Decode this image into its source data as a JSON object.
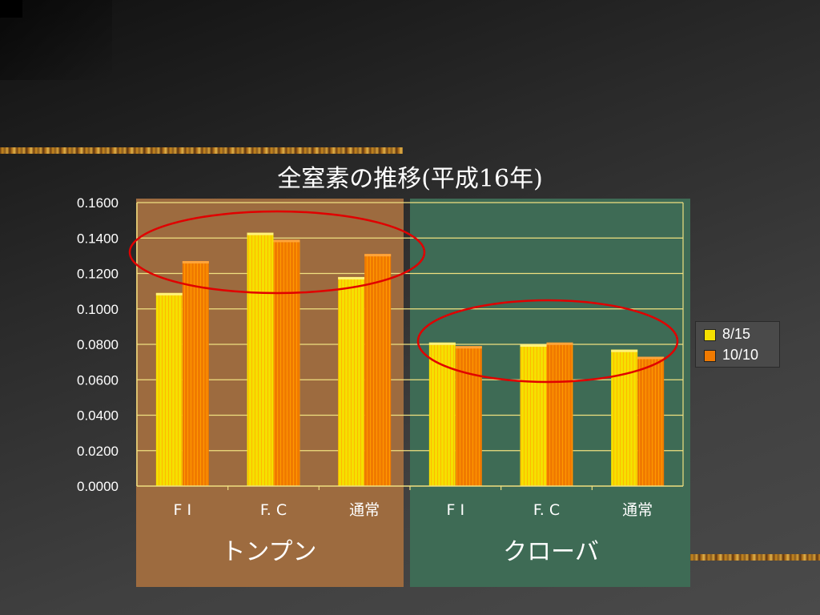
{
  "colors": {
    "background": "#3a3a3a",
    "panel_left": "#9d6b3f",
    "panel_right": "#3e6b55",
    "series1": "#f5e000",
    "series2": "#f07a00",
    "gridline": "#f0e080",
    "axis_text": "#ffffff",
    "ellipse": "#e00000"
  },
  "groups": [
    "トンプン",
    "クローバ"
  ],
  "chart_data": {
    "type": "bar",
    "title": "全窒素の推移(平成16年)",
    "categories": [
      "F I",
      "F. C",
      "通常",
      "F I",
      "F. C",
      "通常"
    ],
    "series": [
      {
        "name": "8/15",
        "values": [
          0.109,
          0.143,
          0.118,
          0.081,
          0.08,
          0.077
        ]
      },
      {
        "name": "10/10",
        "values": [
          0.127,
          0.139,
          0.131,
          0.079,
          0.081,
          0.073
        ]
      }
    ],
    "y_ticks": [
      "0.0000",
      "0.0200",
      "0.0400",
      "0.0600",
      "0.0800",
      "0.1000",
      "0.1200",
      "0.1400",
      "0.1600"
    ],
    "ylim": [
      0,
      0.16
    ],
    "grid": true,
    "legend_position": "right"
  }
}
